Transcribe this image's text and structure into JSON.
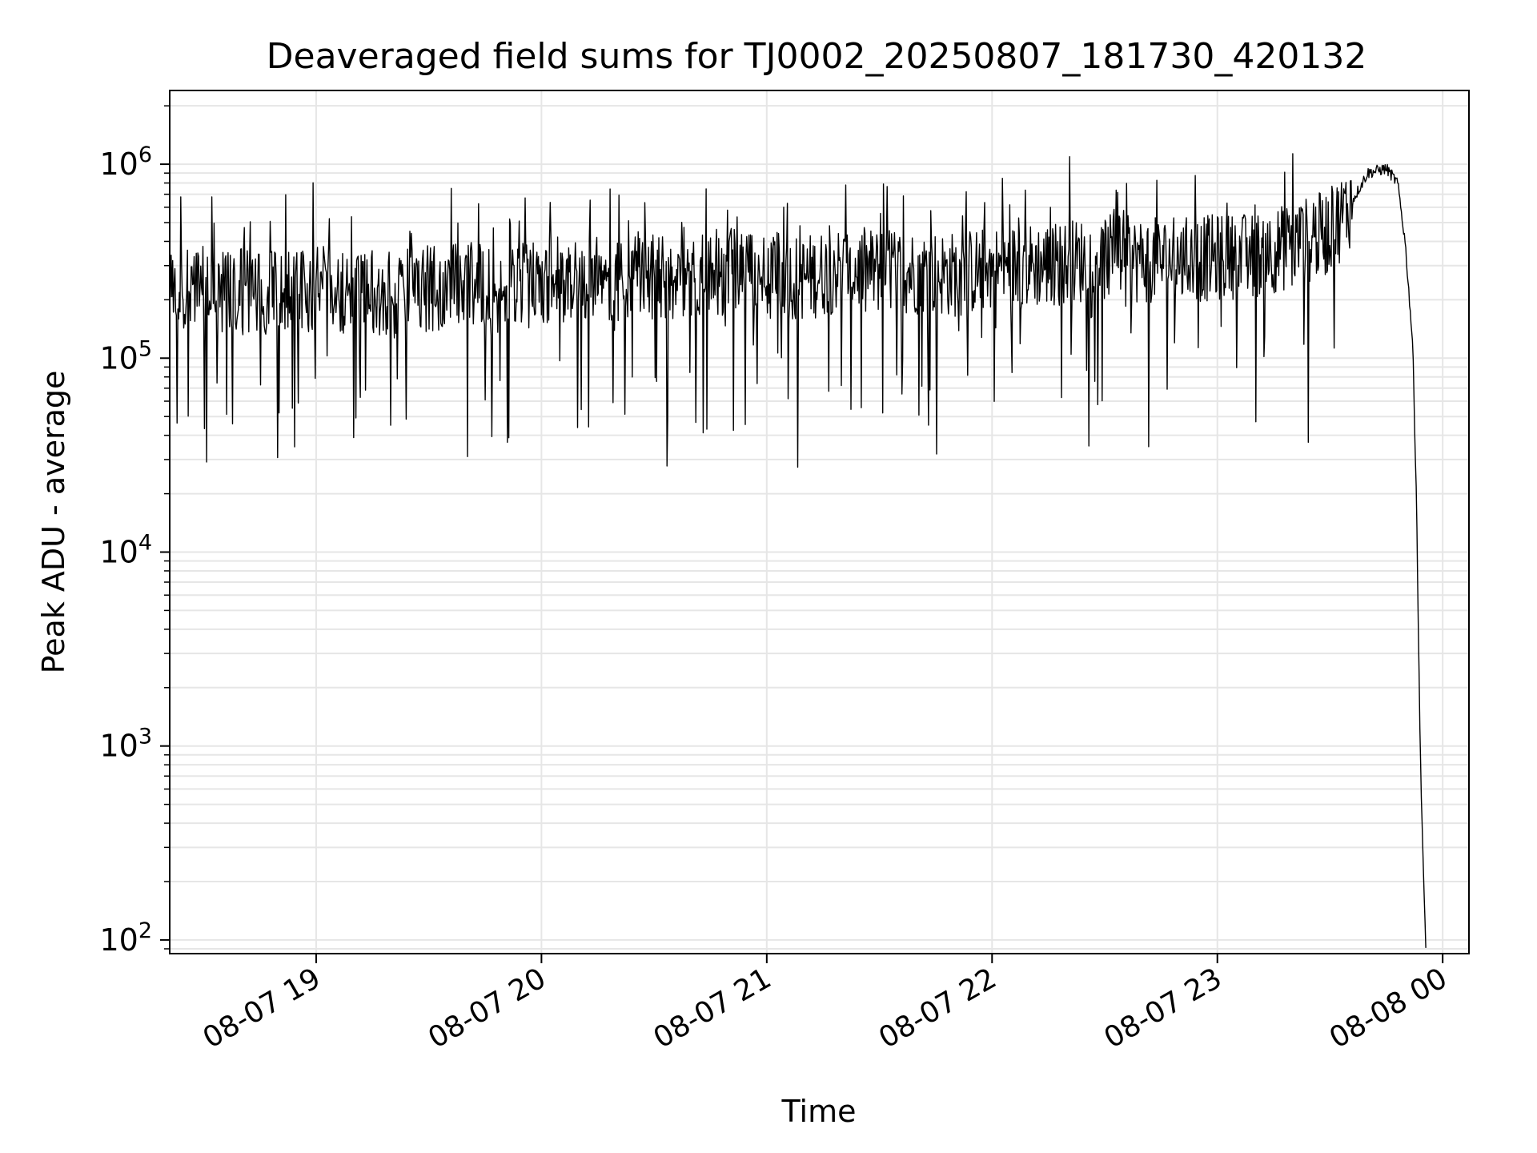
{
  "chart_data": {
    "type": "line",
    "title": "Deaveraged field sums for TJ0002_20250807_181730_420132",
    "xlabel": "Time",
    "ylabel": "Peak ADU - average",
    "yscale": "log",
    "xlim": [
      "2025-08-07 18:21",
      "2025-08-08 00:07"
    ],
    "ylim": [
      85,
      2400000
    ],
    "xticks": [
      {
        "x": "2025-08-07 19:00",
        "label": "08-07 19"
      },
      {
        "x": "2025-08-07 20:00",
        "label": "08-07 20"
      },
      {
        "x": "2025-08-07 21:00",
        "label": "08-07 21"
      },
      {
        "x": "2025-08-07 22:00",
        "label": "08-07 22"
      },
      {
        "x": "2025-08-07 23:00",
        "label": "08-07 23"
      },
      {
        "x": "2025-08-08 00:00",
        "label": "08-08 00"
      }
    ],
    "yticks": [
      {
        "value": 100,
        "base": "10",
        "exp": "2"
      },
      {
        "value": 1000,
        "base": "10",
        "exp": "3"
      },
      {
        "value": 10000,
        "base": "10",
        "exp": "4"
      },
      {
        "value": 100000,
        "base": "10",
        "exp": "5"
      },
      {
        "value": 1000000,
        "base": "10",
        "exp": "6"
      }
    ],
    "grid": true,
    "line_color": "#000000",
    "grid_color": "#e6e6e6",
    "series": [
      {
        "x": [
          "2025-08-07 18:21",
          "2025-08-07 18:30",
          "2025-08-07 18:40",
          "2025-08-07 18:50",
          "2025-08-07 19:00",
          "2025-08-07 19:10",
          "2025-08-07 19:20",
          "2025-08-07 19:30",
          "2025-08-07 19:40",
          "2025-08-07 19:50",
          "2025-08-07 20:00",
          "2025-08-07 20:10",
          "2025-08-07 20:20",
          "2025-08-07 20:30",
          "2025-08-07 20:40",
          "2025-08-07 20:50",
          "2025-08-07 21:00",
          "2025-08-07 21:10",
          "2025-08-07 21:20",
          "2025-08-07 21:30",
          "2025-08-07 21:40",
          "2025-08-07 21:50",
          "2025-08-07 22:00",
          "2025-08-07 22:10",
          "2025-08-07 22:20",
          "2025-08-07 22:30",
          "2025-08-07 22:40",
          "2025-08-07 22:50",
          "2025-08-07 23:00",
          "2025-08-07 23:10",
          "2025-08-07 23:20",
          "2025-08-07 23:30",
          "2025-08-07 23:35",
          "2025-08-07 23:40",
          "2025-08-07 23:45",
          "2025-08-07 23:48",
          "2025-08-07 23:50",
          "2025-08-07 23:52",
          "2025-08-07 23:53",
          "2025-08-07 23:54",
          "2025-08-07 23:55",
          "2025-08-07 23:55:30"
        ],
        "values": [
          220000,
          230000,
          220000,
          210000,
          230000,
          220000,
          210000,
          230000,
          240000,
          220000,
          250000,
          260000,
          250000,
          260000,
          270000,
          280000,
          270000,
          260000,
          290000,
          280000,
          280000,
          270000,
          290000,
          300000,
          310000,
          330000,
          320000,
          320000,
          330000,
          340000,
          380000,
          450000,
          600000,
          900000,
          950000,
          800000,
          400000,
          120000,
          20000,
          1000,
          180,
          90
        ]
      }
    ]
  }
}
